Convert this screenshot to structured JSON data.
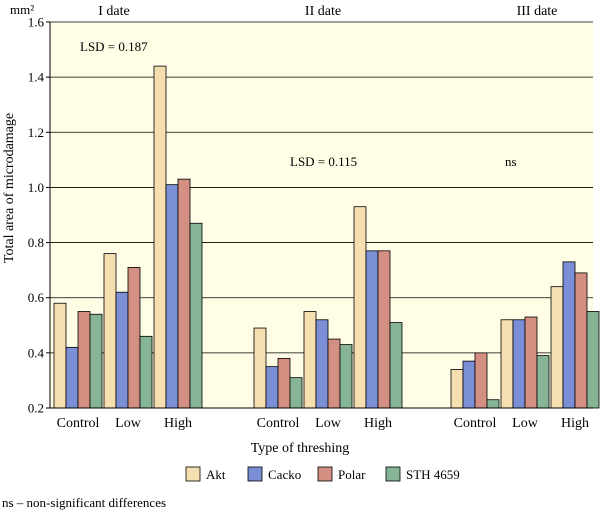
{
  "chart_data": {
    "type": "bar",
    "ylabel": "Total area of microdamage",
    "yunit": "mm²",
    "xlabel": "Type of threshing",
    "ylim": [
      0.2,
      1.6
    ],
    "yticks": [
      "0.2",
      "0.4",
      "0.6",
      "0.8",
      "1.0",
      "1.2",
      "1.4",
      "1.6"
    ],
    "grid": true,
    "legend_position": "bottom",
    "colors": {
      "plot_background": "#fffde6",
      "Akt": "#f5deb0",
      "Cacko": "#7b8fd6",
      "Polar": "#d28f82",
      "STH 4659": "#86b596"
    },
    "categories": [
      "Control",
      "Low",
      "High"
    ],
    "groups": [
      {
        "label": "I date",
        "annotation": "LSD = 0.187",
        "series": [
          {
            "name": "Akt",
            "values": [
              0.58,
              0.76,
              1.44
            ]
          },
          {
            "name": "Cacko",
            "values": [
              0.42,
              0.62,
              1.01
            ]
          },
          {
            "name": "Polar",
            "values": [
              0.55,
              0.71,
              1.03
            ]
          },
          {
            "name": "STH 4659",
            "values": [
              0.54,
              0.46,
              0.87
            ]
          }
        ]
      },
      {
        "label": "II date",
        "annotation": "LSD = 0.115",
        "series": [
          {
            "name": "Akt",
            "values": [
              0.49,
              0.55,
              0.93
            ]
          },
          {
            "name": "Cacko",
            "values": [
              0.35,
              0.52,
              0.77
            ]
          },
          {
            "name": "Polar",
            "values": [
              0.38,
              0.45,
              0.77
            ]
          },
          {
            "name": "STH 4659",
            "values": [
              0.31,
              0.43,
              0.51
            ]
          }
        ]
      },
      {
        "label": "III date",
        "annotation": "ns",
        "series": [
          {
            "name": "Akt",
            "values": [
              0.34,
              0.52,
              0.64
            ]
          },
          {
            "name": "Cacko",
            "values": [
              0.37,
              0.52,
              0.73
            ]
          },
          {
            "name": "Polar",
            "values": [
              0.4,
              0.53,
              0.69
            ]
          },
          {
            "name": "STH 4659",
            "values": [
              0.23,
              0.39,
              0.55
            ]
          }
        ]
      }
    ]
  },
  "footnote": "ns – non-significant differences"
}
